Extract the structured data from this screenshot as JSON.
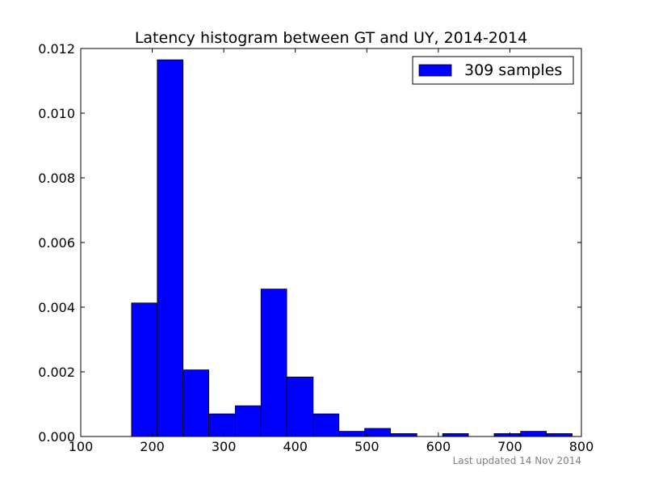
{
  "chart_data": {
    "type": "bar",
    "title": "Latency histogram between GT and UY, 2014-2014",
    "xlabel": "",
    "ylabel": "",
    "xlim": [
      100,
      800
    ],
    "ylim": [
      0,
      0.012
    ],
    "xticks": [
      100,
      200,
      300,
      400,
      500,
      600,
      700,
      800
    ],
    "yticks": [
      0.0,
      0.002,
      0.004,
      0.006,
      0.008,
      0.01,
      0.012
    ],
    "ytick_labels": [
      "0.000",
      "0.002",
      "0.004",
      "0.006",
      "0.008",
      "0.010",
      "0.012"
    ],
    "grid": false,
    "legend_position": "top-right",
    "series": [
      {
        "name": "309 samples",
        "color": "#0000ff",
        "bins": [
          {
            "x0": 171,
            "x1": 207,
            "value": 0.00413
          },
          {
            "x0": 207,
            "x1": 243,
            "value": 0.01165
          },
          {
            "x0": 243,
            "x1": 279,
            "value": 0.00206
          },
          {
            "x0": 279,
            "x1": 316,
            "value": 0.0007
          },
          {
            "x0": 316,
            "x1": 352,
            "value": 0.00095
          },
          {
            "x0": 352,
            "x1": 388,
            "value": 0.00456
          },
          {
            "x0": 388,
            "x1": 425,
            "value": 0.00184
          },
          {
            "x0": 425,
            "x1": 461,
            "value": 0.0007
          },
          {
            "x0": 461,
            "x1": 497,
            "value": 0.00016
          },
          {
            "x0": 497,
            "x1": 533,
            "value": 0.00025
          },
          {
            "x0": 533,
            "x1": 570,
            "value": 9e-05
          },
          {
            "x0": 570,
            "x1": 606,
            "value": 0.0
          },
          {
            "x0": 606,
            "x1": 642,
            "value": 9e-05
          },
          {
            "x0": 642,
            "x1": 678,
            "value": 0.0
          },
          {
            "x0": 678,
            "x1": 715,
            "value": 9e-05
          },
          {
            "x0": 715,
            "x1": 751,
            "value": 0.00016
          },
          {
            "x0": 751,
            "x1": 787,
            "value": 9e-05
          }
        ]
      }
    ]
  },
  "footer": {
    "text": "Last updated 14 Nov 2014"
  }
}
